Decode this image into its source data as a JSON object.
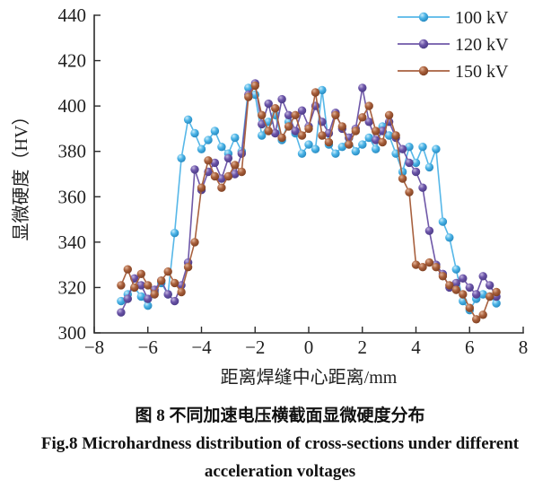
{
  "figure": {
    "caption_cn": "图 8  不同加速电压横截面显微硬度分布",
    "caption_en_line1": "Fig.8  Microhardness distribution of cross-sections under different",
    "caption_en_line2": "acceleration voltages"
  },
  "chart_data": {
    "type": "line",
    "title": "",
    "xlabel": "距离焊缝中心距离/mm",
    "ylabel": "显微硬度（HV）",
    "xlim": [
      -8,
      8
    ],
    "ylim": [
      300,
      440
    ],
    "xticks": [
      -8,
      -6,
      -4,
      -2,
      0,
      2,
      4,
      6,
      8
    ],
    "yticks": [
      300,
      320,
      340,
      360,
      380,
      400,
      420,
      440
    ],
    "grid": false,
    "legend_position": "top-right",
    "marker": "ball-circle",
    "axis_color": "#2b2b2b",
    "x": [
      -7,
      -6.75,
      -6.5,
      -6.25,
      -6,
      -5.75,
      -5.5,
      -5.25,
      -5,
      -4.75,
      -4.5,
      -4.25,
      -4,
      -3.75,
      -3.5,
      -3.25,
      -3,
      -2.75,
      -2.5,
      -2.25,
      -2,
      -1.75,
      -1.5,
      -1.25,
      -1,
      -0.75,
      -0.5,
      -0.25,
      0,
      0.25,
      0.5,
      0.75,
      1,
      1.25,
      1.5,
      1.75,
      2,
      2.25,
      2.5,
      2.75,
      3,
      3.25,
      3.5,
      3.75,
      4,
      4.25,
      4.5,
      4.75,
      5,
      5.25,
      5.5,
      5.75,
      6,
      6.25,
      6.5,
      6.75,
      7
    ],
    "series": [
      {
        "name": "100 kV",
        "line_color": "#56b7e8",
        "marker_colors": [
          "#c9ecfa",
          "#4cb4e7",
          "#2386bd"
        ],
        "values": [
          314,
          317,
          320,
          316,
          312,
          318,
          322,
          317,
          344,
          377,
          394,
          388,
          381,
          385,
          389,
          382,
          379,
          386,
          380,
          408,
          405,
          387,
          393,
          396,
          385,
          393,
          388,
          379,
          383,
          381,
          407,
          383,
          379,
          382,
          386,
          380,
          383,
          386,
          381,
          391,
          387,
          379,
          371,
          382,
          375,
          382,
          373,
          381,
          349,
          342,
          328,
          314,
          310,
          315,
          317,
          316,
          313
        ]
      },
      {
        "name": "120 kV",
        "line_color": "#6f58a8",
        "marker_colors": [
          "#c3b6e0",
          "#6b54a8",
          "#4a3a85"
        ],
        "values": [
          309,
          315,
          324,
          321,
          315,
          319,
          323,
          317,
          314,
          321,
          331,
          372,
          363,
          371,
          375,
          368,
          377,
          370,
          379,
          405,
          410,
          392,
          401,
          388,
          403,
          396,
          389,
          398,
          391,
          400,
          393,
          388,
          397,
          390,
          386,
          390,
          408,
          393,
          385,
          389,
          393,
          386,
          381,
          375,
          371,
          364,
          345,
          330,
          326,
          320,
          322,
          324,
          320,
          317,
          325,
          321,
          316
        ]
      },
      {
        "name": "150 kV",
        "line_color": "#a8613f",
        "marker_colors": [
          "#e2b397",
          "#a9603c",
          "#7c3e20"
        ],
        "values": [
          321,
          328,
          320,
          326,
          321,
          317,
          323,
          327,
          322,
          318,
          329,
          340,
          364,
          376,
          369,
          364,
          369,
          374,
          371,
          404,
          409,
          396,
          389,
          399,
          386,
          391,
          396,
          387,
          390,
          406,
          387,
          384,
          396,
          391,
          383,
          389,
          395,
          400,
          389,
          384,
          396,
          387,
          368,
          362,
          330,
          329,
          331,
          329,
          325,
          321,
          319,
          317,
          311,
          306,
          308,
          316,
          318
        ]
      }
    ]
  }
}
